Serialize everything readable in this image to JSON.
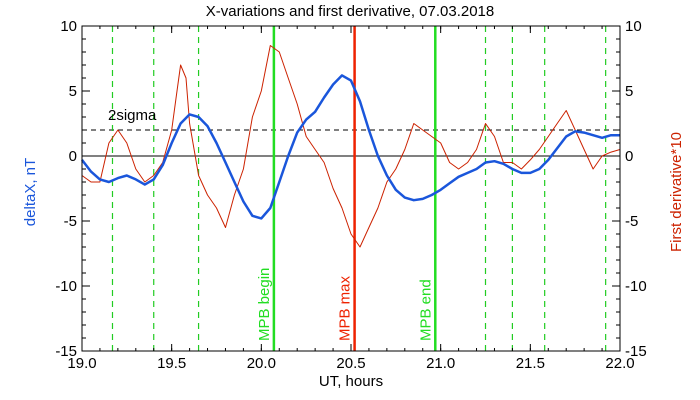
{
  "chart_data": {
    "type": "line",
    "title": "X-variations and first derivative, 07.03.2018",
    "xlabel": "UT, hours",
    "ylabel_left": "deltaX, nT",
    "ylabel_right": "First derivative*10",
    "xlim": [
      19.0,
      22.0
    ],
    "ylim": [
      -15,
      10
    ],
    "x_ticks": [
      "19.0",
      "19.5",
      "20.0",
      "20.5",
      "21.0",
      "21.5",
      "22.0"
    ],
    "y_ticks_left": [
      "-15",
      "-10",
      "-5",
      "0",
      "5",
      "10"
    ],
    "y_ticks_right": [
      "-15",
      "-10",
      "-5",
      "0",
      "5",
      "10"
    ],
    "threshold": {
      "label": "2sigma",
      "y": 2
    },
    "colors": {
      "deltaX": "#1a56db",
      "derivative": "#cc2200",
      "mpb_edge": "#22dd22",
      "mpb_max": "#ee2200",
      "axes": "#000000"
    },
    "series": [
      {
        "key": "deltaX",
        "color": "#1a56db",
        "x": [
          19.0,
          19.05,
          19.1,
          19.15,
          19.2,
          19.25,
          19.3,
          19.35,
          19.4,
          19.45,
          19.5,
          19.55,
          19.6,
          19.65,
          19.7,
          19.75,
          19.8,
          19.85,
          19.9,
          19.95,
          20.0,
          20.05,
          20.1,
          20.15,
          20.2,
          20.25,
          20.3,
          20.35,
          20.4,
          20.45,
          20.5,
          20.55,
          20.6,
          20.65,
          20.7,
          20.75,
          20.8,
          20.85,
          20.9,
          20.95,
          21.0,
          21.05,
          21.1,
          21.15,
          21.2,
          21.25,
          21.3,
          21.35,
          21.4,
          21.45,
          21.5,
          21.55,
          21.6,
          21.65,
          21.7,
          21.75,
          21.8,
          21.85,
          21.9,
          21.95,
          22.0
        ],
        "values": [
          -0.3,
          -1.2,
          -1.8,
          -2.0,
          -1.7,
          -1.5,
          -1.8,
          -2.2,
          -1.8,
          -0.7,
          1.0,
          2.5,
          3.2,
          3.0,
          2.3,
          1.0,
          -0.5,
          -2.0,
          -3.5,
          -4.6,
          -4.8,
          -4.0,
          -2.0,
          0.0,
          1.8,
          2.8,
          3.4,
          4.5,
          5.5,
          6.2,
          5.8,
          4.2,
          2.0,
          0.0,
          -1.5,
          -2.6,
          -3.2,
          -3.4,
          -3.3,
          -3.0,
          -2.6,
          -2.1,
          -1.6,
          -1.3,
          -1.0,
          -0.5,
          -0.4,
          -0.6,
          -1.0,
          -1.3,
          -1.3,
          -1.0,
          -0.3,
          0.6,
          1.5,
          1.9,
          1.8,
          1.6,
          1.4,
          1.6,
          1.6
        ]
      },
      {
        "key": "derivative",
        "color": "#cc2200",
        "x": [
          19.0,
          19.05,
          19.1,
          19.15,
          19.2,
          19.25,
          19.3,
          19.35,
          19.4,
          19.45,
          19.5,
          19.53,
          19.55,
          19.58,
          19.6,
          19.65,
          19.7,
          19.75,
          19.8,
          19.85,
          19.9,
          19.95,
          20.0,
          20.05,
          20.1,
          20.15,
          20.2,
          20.25,
          20.3,
          20.35,
          20.4,
          20.45,
          20.5,
          20.55,
          20.6,
          20.65,
          20.7,
          20.75,
          20.8,
          20.85,
          20.9,
          20.95,
          21.0,
          21.05,
          21.1,
          21.15,
          21.2,
          21.25,
          21.3,
          21.35,
          21.4,
          21.45,
          21.5,
          21.55,
          21.6,
          21.65,
          21.7,
          21.75,
          21.8,
          21.85,
          21.9,
          21.95,
          22.0
        ],
        "values": [
          -1.5,
          -2.0,
          -2.0,
          1.0,
          2.0,
          1.0,
          -1.0,
          -2.0,
          -1.5,
          -0.5,
          2.0,
          5.0,
          7.0,
          6.0,
          2.5,
          -1.5,
          -3.0,
          -4.0,
          -5.5,
          -3.0,
          -1.0,
          3.0,
          5.0,
          8.5,
          8.0,
          6.0,
          4.0,
          1.5,
          0.5,
          -0.5,
          -2.5,
          -4.0,
          -6.0,
          -7.0,
          -5.5,
          -4.0,
          -2.0,
          -1.0,
          0.5,
          2.5,
          2.0,
          1.5,
          1.0,
          -0.5,
          -1.0,
          -0.5,
          0.5,
          2.5,
          1.5,
          -0.5,
          -0.5,
          -1.0,
          -0.3,
          0.5,
          1.5,
          2.5,
          3.5,
          2.0,
          0.5,
          -1.0,
          0.0,
          0.3,
          0.5
        ]
      }
    ],
    "markers": [
      {
        "x": 19.17,
        "label": "",
        "color": "#22cc22",
        "style": "dashed"
      },
      {
        "x": 19.4,
        "label": "",
        "color": "#22cc22",
        "style": "dashed"
      },
      {
        "x": 19.65,
        "label": "",
        "color": "#22cc22",
        "style": "dashed"
      },
      {
        "x": 21.25,
        "label": "",
        "color": "#22cc22",
        "style": "dashed"
      },
      {
        "x": 21.4,
        "label": "",
        "color": "#22cc22",
        "style": "dashed"
      },
      {
        "x": 21.58,
        "label": "",
        "color": "#22cc22",
        "style": "dashed"
      },
      {
        "x": 21.92,
        "label": "",
        "color": "#22cc22",
        "style": "dashed"
      },
      {
        "x": 20.07,
        "label": "MPB begin",
        "color": "#22dd22",
        "style": "solid"
      },
      {
        "x": 20.52,
        "label": "MPB max",
        "color": "#ee2200",
        "style": "solid"
      },
      {
        "x": 20.97,
        "label": "MPB end",
        "color": "#22dd22",
        "style": "solid"
      }
    ]
  }
}
